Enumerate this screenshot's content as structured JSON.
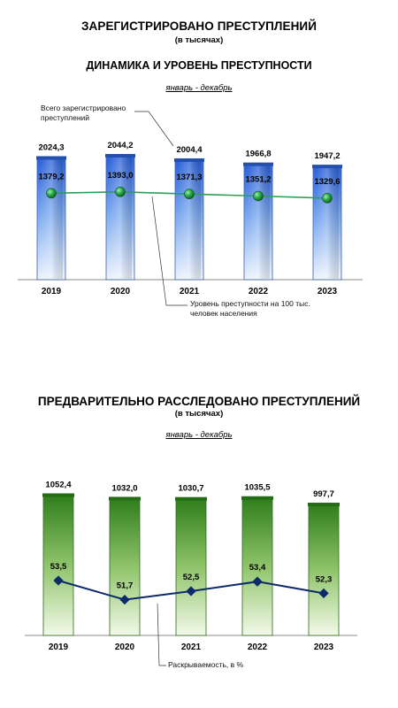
{
  "chart_data": [
    {
      "type": "bar",
      "title": "ЗАРЕГИСТРИРОВАНО ПРЕСТУПЛЕНИЙ",
      "unit": "(в тысячах)",
      "subtitle": "ДИНАМИКА И УРОВЕНЬ ПРЕСТУПНОСТИ",
      "period": "январь - декабрь",
      "categories": [
        "2019",
        "2020",
        "2021",
        "2022",
        "2023"
      ],
      "series": [
        {
          "name": "Всего зарегистрировано преступлений",
          "values": [
            2024.3,
            2044.2,
            2004.4,
            1966.8,
            1947.2
          ],
          "labels": [
            "2024,3",
            "2044,2",
            "2004,4",
            "1966,8",
            "1947,2"
          ]
        },
        {
          "name": "Уровень преступности на 100 тыс. человек населения",
          "type": "line",
          "values": [
            1379.2,
            1393.0,
            1371.3,
            1351.2,
            1329.6
          ],
          "labels": [
            "1379,2",
            "1393,0",
            "1371,3",
            "1351,2",
            "1329,6"
          ]
        }
      ],
      "annotations": {
        "bars_note": "Всего зарегистрировано преступлений",
        "line_note": "Уровень преступности на 100 тыс. человек населения"
      },
      "colors": {
        "bar_top": "#2a5fd8",
        "bar_bottom": "#eef4fd",
        "line": "#2e9e55",
        "marker": "#1f8a3a"
      }
    },
    {
      "type": "bar",
      "title": "ПРЕДВАРИТЕЛЬНО РАССЛЕДОВАНО ПРЕСТУПЛЕНИЙ",
      "unit": "(в тысячах)",
      "period": "январь - декабрь",
      "categories": [
        "2019",
        "2020",
        "2021",
        "2022",
        "2023"
      ],
      "series": [
        {
          "name": "Предварительно расследовано преступлений",
          "values": [
            1052.4,
            1032.0,
            1030.7,
            1035.5,
            997.7
          ],
          "labels": [
            "1052,4",
            "1032,0",
            "1030,7",
            "1035,5",
            "997,7"
          ]
        },
        {
          "name": "Раскрываемость, в %",
          "type": "line",
          "values": [
            53.5,
            51.7,
            52.5,
            53.4,
            52.3
          ],
          "labels": [
            "53,5",
            "51,7",
            "52,5",
            "53,4",
            "52,3"
          ]
        }
      ],
      "annotations": {
        "line_note": "Раскрываемость, в %"
      },
      "colors": {
        "bar_top": "#2f7d1c",
        "bar_bottom": "#f3f9e9",
        "line": "#0d2b6b",
        "marker": "#0d2b6b"
      }
    }
  ]
}
